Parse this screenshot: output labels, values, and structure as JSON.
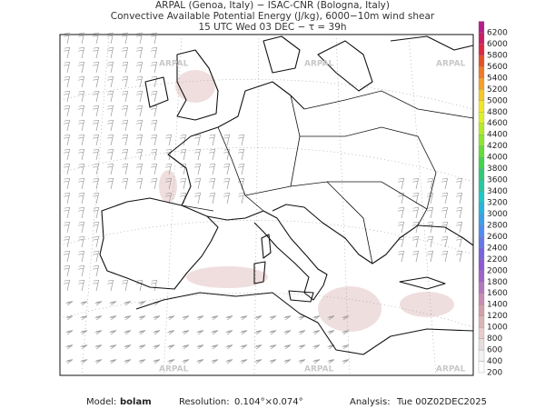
{
  "header": {
    "line1": "ARPAL (Genoa, Italy)  −  ISAC-CNR (Bologna, Italy)",
    "line2": "Convective Available Potential Energy (J/kg), 6000−10m wind shear",
    "line3": "15 UTC Wed 03 DEC  −  τ = 39h"
  },
  "watermark": "ARPAL",
  "colorbar": {
    "levels": [
      200,
      400,
      600,
      800,
      1000,
      1200,
      1400,
      1600,
      1800,
      2000,
      2200,
      2400,
      2600,
      2800,
      3000,
      3200,
      3400,
      3600,
      3800,
      4000,
      4200,
      4400,
      4600,
      4800,
      5000,
      5200,
      5400,
      5600,
      5800,
      6000,
      6200
    ],
    "colors": [
      "#ffffff",
      "#f2f2f2",
      "#e6dcdc",
      "#e8cccc",
      "#dcb4b4",
      "#d2a0aa",
      "#c88cb4",
      "#b478be",
      "#a064c8",
      "#8c5ad2",
      "#7864dc",
      "#6478e6",
      "#508cf0",
      "#3ca0e6",
      "#28b4dc",
      "#1ec8c8",
      "#28c8a0",
      "#32c878",
      "#46d250",
      "#64dc3c",
      "#8ce632",
      "#b4eb28",
      "#dcf028",
      "#f0e628",
      "#f5c828",
      "#f5a028",
      "#f07828",
      "#e65028",
      "#dc2846",
      "#c81e64",
      "#b41e8c"
    ]
  },
  "footer": {
    "model_label": "Model:",
    "model": "bolam",
    "resolution_label": "Resolution:",
    "resolution": "0.104°×0.074°",
    "analysis_label": "Analysis:",
    "analysis": "Tue 00Z02DEC2025"
  }
}
